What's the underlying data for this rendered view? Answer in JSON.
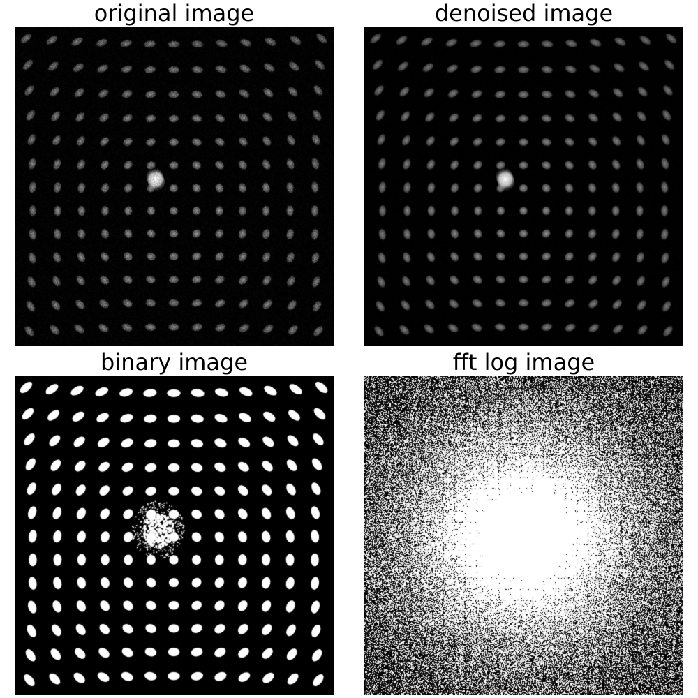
{
  "figure": {
    "panels": [
      {
        "id": "original",
        "title": "original image"
      },
      {
        "id": "denoised",
        "title": "denoised image"
      },
      {
        "id": "binary",
        "title": "binary image"
      },
      {
        "id": "fft",
        "title": "fft log image"
      }
    ]
  },
  "colors": {
    "background": "#ffffff",
    "image_background": "#000000",
    "spot": "#b4b4b4",
    "binary_foreground": "#ffffff"
  }
}
